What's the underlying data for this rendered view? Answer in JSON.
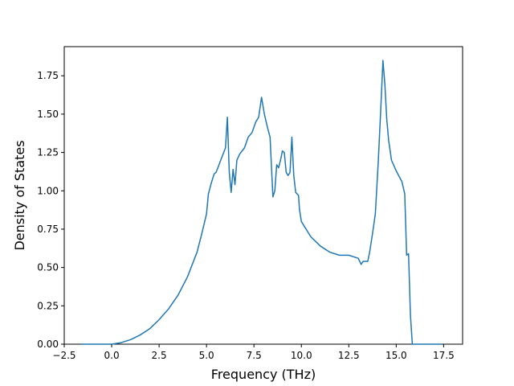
{
  "chart_data": {
    "type": "line",
    "title": "",
    "xlabel": "Frequency (THz)",
    "ylabel": "Density of States",
    "xlim": [
      -2.5,
      18.5
    ],
    "ylim": [
      0,
      1.94
    ],
    "xticks": [
      -2.5,
      0.0,
      2.5,
      5.0,
      7.5,
      10.0,
      12.5,
      15.0,
      17.5
    ],
    "xtick_labels": [
      "−2.5",
      "0.0",
      "2.5",
      "5.0",
      "7.5",
      "10.0",
      "12.5",
      "15.0",
      "17.5"
    ],
    "yticks": [
      0.0,
      0.25,
      0.5,
      0.75,
      1.0,
      1.25,
      1.5,
      1.75
    ],
    "ytick_labels": [
      "0.00",
      "0.25",
      "0.50",
      "0.75",
      "1.00",
      "1.25",
      "1.50",
      "1.75"
    ],
    "grid": false,
    "line_color": "#1f77b4",
    "series": [
      {
        "x": [
          -1.6,
          -0.5,
          0.0,
          0.5,
          1.0,
          1.5,
          2.0,
          2.5,
          3.0,
          3.5,
          4.0,
          4.25,
          4.5,
          4.75,
          5.0,
          5.1,
          5.25,
          5.4,
          5.5,
          5.6,
          5.75,
          6.0,
          6.1,
          6.2,
          6.3,
          6.4,
          6.5,
          6.6,
          6.75,
          7.0,
          7.2,
          7.4,
          7.6,
          7.75,
          7.9,
          8.05,
          8.2,
          8.35,
          8.5,
          8.6,
          8.7,
          8.8,
          8.9,
          9.0,
          9.1,
          9.2,
          9.3,
          9.4,
          9.5,
          9.6,
          9.7,
          9.85,
          9.9,
          10.0,
          10.2,
          10.4,
          10.5,
          10.75,
          11.0,
          11.5,
          12.0,
          12.5,
          13.0,
          13.15,
          13.25,
          13.5,
          13.6,
          13.75,
          13.9,
          14.05,
          14.2,
          14.3,
          14.4,
          14.5,
          14.6,
          14.75,
          15.0,
          15.3,
          15.45,
          15.55,
          15.65,
          15.75,
          15.85,
          16.5,
          17.4
        ],
        "y": [
          0.0,
          0.0,
          0.0,
          0.01,
          0.03,
          0.06,
          0.1,
          0.16,
          0.23,
          0.32,
          0.44,
          0.52,
          0.6,
          0.72,
          0.85,
          0.98,
          1.05,
          1.11,
          1.12,
          1.15,
          1.2,
          1.28,
          1.48,
          1.12,
          0.99,
          1.14,
          1.04,
          1.2,
          1.24,
          1.28,
          1.35,
          1.38,
          1.45,
          1.48,
          1.61,
          1.5,
          1.42,
          1.35,
          0.96,
          1.0,
          1.17,
          1.15,
          1.2,
          1.26,
          1.25,
          1.12,
          1.1,
          1.12,
          1.35,
          1.1,
          0.99,
          0.97,
          0.88,
          0.8,
          0.76,
          0.72,
          0.7,
          0.67,
          0.64,
          0.6,
          0.58,
          0.58,
          0.56,
          0.52,
          0.54,
          0.54,
          0.6,
          0.72,
          0.85,
          1.18,
          1.57,
          1.85,
          1.7,
          1.47,
          1.33,
          1.2,
          1.13,
          1.06,
          0.98,
          0.58,
          0.59,
          0.19,
          0.0,
          0.0,
          0.0
        ]
      }
    ]
  }
}
